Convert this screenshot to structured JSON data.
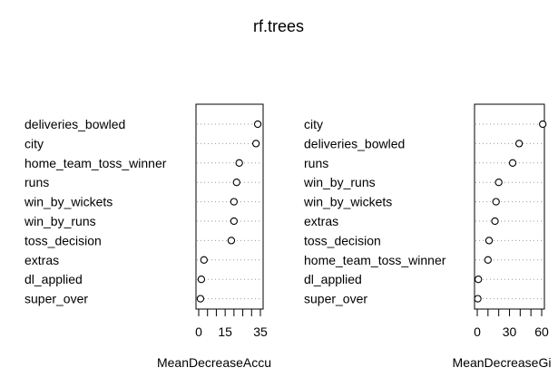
{
  "title": "rf.trees",
  "chart_data": [
    {
      "type": "scatter",
      "subtype": "dotchart",
      "xlabel": "MeanDecreaseAccu",
      "ylabel": "",
      "xlim": [
        0,
        35
      ],
      "xticks": [
        0,
        5,
        10,
        15,
        20,
        25,
        30,
        35
      ],
      "xticklabels": [
        "0",
        "",
        "",
        "15",
        "",
        "",
        "",
        "35"
      ],
      "grid": "dotted horizontal",
      "categories": [
        "deliveries_bowled",
        "city",
        "home_team_toss_winner",
        "runs",
        "win_by_wickets",
        "win_by_runs",
        "toss_decision",
        "extras",
        "dl_applied",
        "super_over"
      ],
      "values": [
        33.5,
        32.5,
        23.0,
        21.5,
        20.0,
        20.0,
        18.5,
        3.0,
        1.5,
        1.0
      ]
    },
    {
      "type": "scatter",
      "subtype": "dotchart",
      "xlabel": "MeanDecreaseGi",
      "ylabel": "",
      "xlim": [
        0,
        60
      ],
      "xticks": [
        0,
        10,
        20,
        30,
        40,
        50,
        60
      ],
      "xticklabels": [
        "0",
        "",
        "",
        "30",
        "",
        "",
        "60"
      ],
      "grid": "dotted horizontal",
      "categories": [
        "city",
        "deliveries_bowled",
        "runs",
        "win_by_runs",
        "win_by_wickets",
        "extras",
        "toss_decision",
        "home_team_toss_winner",
        "dl_applied",
        "super_over"
      ],
      "values": [
        61.0,
        39.0,
        33.0,
        20.0,
        17.5,
        16.5,
        11.0,
        10.0,
        1.0,
        0.5
      ]
    }
  ]
}
